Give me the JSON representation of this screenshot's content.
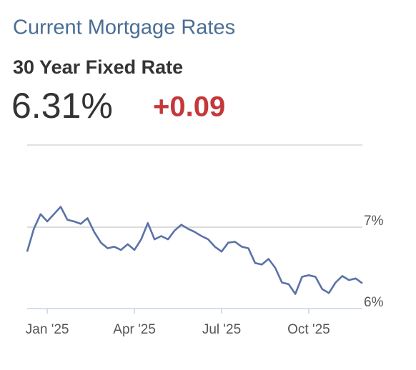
{
  "chart_data": {
    "type": "line",
    "title": "Current Mortgage Rates",
    "subtitle": "30 Year Fixed Rate",
    "headline": "6.31%",
    "change": "+0.09",
    "categories": [
      null,
      null,
      null,
      "Jan '25",
      null,
      null,
      null,
      null,
      null,
      null,
      null,
      null,
      null,
      null,
      null,
      null,
      "Apr '25",
      null,
      null,
      null,
      null,
      null,
      null,
      null,
      null,
      null,
      null,
      null,
      null,
      "Jul '25",
      null,
      null,
      null,
      null,
      null,
      null,
      null,
      null,
      null,
      null,
      null,
      null,
      "Oct '25",
      null,
      null,
      null,
      null,
      null,
      null,
      null,
      null
    ],
    "series": [
      {
        "name": "30 Year Fixed Rate",
        "color": "#5a72a8",
        "values": [
          6.7,
          6.98,
          7.16,
          7.07,
          7.16,
          7.25,
          7.09,
          7.07,
          7.04,
          7.11,
          6.94,
          6.81,
          6.74,
          6.76,
          6.72,
          6.79,
          6.72,
          6.85,
          7.05,
          6.85,
          6.89,
          6.85,
          6.96,
          7.03,
          6.98,
          6.94,
          6.89,
          6.85,
          6.76,
          6.7,
          6.81,
          6.82,
          6.76,
          6.74,
          6.56,
          6.54,
          6.61,
          6.5,
          6.32,
          6.3,
          6.18,
          6.39,
          6.41,
          6.39,
          6.24,
          6.19,
          6.32,
          6.4,
          6.35,
          6.37,
          6.31
        ]
      }
    ],
    "ylim": [
      6,
      8
    ],
    "yticks": [
      {
        "value": 6,
        "label": "6%"
      },
      {
        "value": 7,
        "label": "7%"
      }
    ],
    "grid": true,
    "change_color": "#c4383a"
  }
}
